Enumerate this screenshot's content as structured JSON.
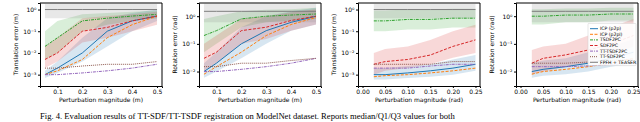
{
  "chart_data": [
    {
      "type": "line",
      "log": "y",
      "x_label": "Perturbation magnitude (m)",
      "y_label": "Translation error (m)",
      "xlim": [
        0.03,
        0.52
      ],
      "xticks": [
        0.1,
        0.2,
        0.3,
        0.4,
        0.5
      ],
      "ylim": [
        0.0003,
        2
      ],
      "yticks": [
        {
          "value": 0.001,
          "label": "10⁻³"
        },
        {
          "value": 0.01,
          "label": "10⁻²"
        },
        {
          "value": 0.1,
          "label": "10⁻¹"
        },
        {
          "value": 1,
          "label": "10⁰"
        }
      ],
      "x": [
        0.05,
        0.1,
        0.2,
        0.3,
        0.4,
        0.5
      ],
      "series": [
        {
          "name": "ICP (p2p)",
          "color": "#1f77b4",
          "line_style": "solid",
          "values": [
            0.001,
            0.002,
            0.01,
            0.1,
            0.3,
            0.5
          ],
          "q1": [
            0.0007,
            0.0012,
            0.004,
            0.02,
            0.1,
            0.3
          ],
          "q3": [
            0.0015,
            0.004,
            0.05,
            0.4,
            0.7,
            1
          ]
        },
        {
          "name": "ICP (p2pl)",
          "color": "#ff7f0e",
          "line_style": "dashed",
          "values": [
            0.001,
            0.0015,
            0.005,
            0.05,
            0.2,
            0.5
          ]
        },
        {
          "name": "TSDF2PC",
          "color": "#2ca02c",
          "line_style": "dashdot",
          "values": [
            0.02,
            0.05,
            0.3,
            0.4,
            0.5,
            0.6
          ],
          "q1": [
            0.005,
            0.01,
            0.1,
            0.2,
            0.3,
            0.4
          ],
          "q3": [
            0.1,
            0.3,
            0.6,
            0.7,
            0.8,
            0.9
          ]
        },
        {
          "name": "SDF2PC",
          "color": "#d62728",
          "line_style": "dashed",
          "values": [
            0.005,
            0.01,
            0.1,
            0.15,
            0.3,
            0.5
          ],
          "q1": [
            0.002,
            0.004,
            0.03,
            0.05,
            0.1,
            0.2
          ],
          "q3": [
            0.02,
            0.05,
            0.4,
            0.5,
            0.6,
            0.8
          ]
        },
        {
          "name": "TT-TSDF2PC",
          "color": "#9467bd",
          "line_style": "dashdot",
          "values": [
            0.001,
            0.001,
            0.0012,
            0.0015,
            0.002,
            0.003
          ]
        },
        {
          "name": "TT-SDF2PC",
          "color": "#8c564b",
          "line_style": "dotted",
          "values": [
            0.002,
            0.002,
            0.0025,
            0.003,
            0.003,
            0.004
          ]
        },
        {
          "name": "FPFH + TEASER",
          "color": "#7f7f7f",
          "line_style": "solid",
          "values": [
            1,
            1,
            1,
            1,
            1,
            1
          ],
          "q1": [
            0.4,
            0.4,
            0.4,
            0.4,
            0.4,
            0.4
          ],
          "q3": [
            1.8,
            1.8,
            1.8,
            1.8,
            1.8,
            1.8
          ]
        }
      ]
    },
    {
      "type": "line",
      "log": "y",
      "x_label": "Perturbation magnitude (m)",
      "y_label": "Rotation error (rad)",
      "xlim": [
        0.03,
        0.52
      ],
      "xticks": [
        0.1,
        0.2,
        0.3,
        0.4,
        0.5
      ],
      "ylim": [
        0.003,
        3
      ],
      "yticks": [
        {
          "value": 0.01,
          "label": "10⁻²"
        },
        {
          "value": 0.1,
          "label": "10⁻¹"
        },
        {
          "value": 1,
          "label": "10⁰"
        }
      ],
      "x": [
        0.05,
        0.1,
        0.2,
        0.3,
        0.4,
        0.5
      ],
      "series": [
        {
          "name": "ICP (p2p)",
          "color": "#1f77b4",
          "line_style": "solid",
          "values": [
            0.01,
            0.02,
            0.1,
            0.3,
            0.6,
            1
          ],
          "q1": [
            0.006,
            0.01,
            0.03,
            0.1,
            0.3,
            0.5
          ],
          "q3": [
            0.02,
            0.05,
            0.4,
            1,
            1.5,
            2
          ]
        },
        {
          "name": "ICP (p2pl)",
          "color": "#ff7f0e",
          "line_style": "dashed",
          "values": [
            0.008,
            0.015,
            0.05,
            0.2,
            0.5,
            0.9
          ]
        },
        {
          "name": "TSDF2PC",
          "color": "#2ca02c",
          "line_style": "dashdot",
          "values": [
            0.2,
            0.3,
            0.8,
            1,
            1.1,
            1.2
          ],
          "q1": [
            0.05,
            0.1,
            0.4,
            0.6,
            0.7,
            0.8
          ],
          "q3": [
            0.8,
            1,
            1.5,
            1.7,
            1.8,
            2
          ]
        },
        {
          "name": "SDF2PC",
          "color": "#d62728",
          "line_style": "dashed",
          "values": [
            0.03,
            0.05,
            0.3,
            0.4,
            0.7,
            1
          ],
          "q1": [
            0.01,
            0.02,
            0.1,
            0.15,
            0.3,
            0.5
          ],
          "q3": [
            0.1,
            0.2,
            0.8,
            1,
            1.4,
            1.8
          ]
        },
        {
          "name": "TT-TSDF2PC",
          "color": "#9467bd",
          "line_style": "dashdot",
          "values": [
            0.01,
            0.01,
            0.012,
            0.015,
            0.02,
            0.03
          ]
        },
        {
          "name": "TT-SDF2PC",
          "color": "#8c564b",
          "line_style": "dotted",
          "values": [
            0.015,
            0.015,
            0.02,
            0.02,
            0.025,
            0.03
          ]
        },
        {
          "name": "FPFH + TEASER",
          "color": "#7f7f7f",
          "line_style": "solid",
          "values": [
            1.5,
            1.5,
            1.5,
            1.5,
            1.5,
            1.5
          ],
          "q1": [
            0.6,
            0.6,
            0.6,
            0.6,
            0.6,
            0.6
          ],
          "q3": [
            2.8,
            2.8,
            2.8,
            2.8,
            2.8,
            2.8
          ]
        }
      ]
    },
    {
      "type": "line",
      "log": "y",
      "x_label": "Perturbation magnitude (rad)",
      "y_label": "Translation error (m)",
      "xlim": [
        -0.01,
        0.26
      ],
      "xticks": [
        {
          "value": 0,
          "label": "0.00"
        },
        0.05,
        {
          "value": 0.1,
          "label": "0.10"
        },
        0.15,
        {
          "value": 0.2,
          "label": "0.20"
        },
        0.25
      ],
      "ylim": [
        0.0003,
        2
      ],
      "yticks": [
        {
          "value": 0.001,
          "label": "10⁻³"
        },
        {
          "value": 0.01,
          "label": "10⁻²"
        },
        {
          "value": 0.1,
          "label": "10⁻¹"
        },
        {
          "value": 1,
          "label": "10⁰"
        }
      ],
      "x": [
        0.025,
        0.05,
        0.1,
        0.15,
        0.2,
        0.25
      ],
      "series": [
        {
          "name": "ICP (p2p)",
          "color": "#1f77b4",
          "line_style": "solid",
          "values": [
            0.001,
            0.001,
            0.0012,
            0.0015,
            0.002,
            0.003
          ],
          "q1": [
            0.0006,
            0.0006,
            0.0007,
            0.0008,
            0.001,
            0.0015
          ],
          "q3": [
            0.002,
            0.002,
            0.0025,
            0.003,
            0.005,
            0.008
          ]
        },
        {
          "name": "ICP (p2pl)",
          "color": "#ff7f0e",
          "line_style": "dashed",
          "values": [
            0.0008,
            0.0009,
            0.001,
            0.0012,
            0.0015,
            0.002
          ]
        },
        {
          "name": "TSDF2PC",
          "color": "#2ca02c",
          "line_style": "dashdot",
          "values": [
            0.3,
            0.3,
            0.35,
            0.35,
            0.4,
            0.4
          ],
          "q1": [
            0.1,
            0.1,
            0.12,
            0.12,
            0.15,
            0.15
          ],
          "q3": [
            0.9,
            0.9,
            1,
            1,
            1.1,
            1.1
          ]
        },
        {
          "name": "SDF2PC",
          "color": "#d62728",
          "line_style": "dashed",
          "values": [
            0.003,
            0.004,
            0.005,
            0.008,
            0.02,
            0.04
          ],
          "q1": [
            0.001,
            0.0015,
            0.002,
            0.003,
            0.006,
            0.01
          ],
          "q3": [
            0.01,
            0.015,
            0.02,
            0.04,
            0.1,
            0.2
          ]
        },
        {
          "name": "TT-TSDF2PC",
          "color": "#9467bd",
          "line_style": "dashdot",
          "values": [
            0.002,
            0.002,
            0.002,
            0.0025,
            0.003,
            0.003
          ]
        },
        {
          "name": "TT-SDF2PC",
          "color": "#8c564b",
          "line_style": "dotted",
          "values": [
            0.003,
            0.003,
            0.003,
            0.003,
            0.004,
            0.004
          ]
        },
        {
          "name": "FPFH + TEASER",
          "color": "#7f7f7f",
          "line_style": "solid",
          "values": [
            1,
            1,
            1,
            1,
            1,
            1
          ],
          "q1": [
            0.4,
            0.4,
            0.4,
            0.4,
            0.4,
            0.4
          ],
          "q3": [
            1.8,
            1.8,
            1.8,
            1.8,
            1.8,
            1.8
          ]
        }
      ]
    },
    {
      "type": "line",
      "log": "y",
      "legend": "center right",
      "x_label": "Perturbation magnitude (rad)",
      "y_label": "Rotation error (rad)",
      "xlim": [
        -0.01,
        0.26
      ],
      "xticks": [
        {
          "value": 0,
          "label": "0.00"
        },
        0.05,
        {
          "value": 0.1,
          "label": "0.10"
        },
        0.15,
        {
          "value": 0.2,
          "label": "0.20"
        },
        0.25
      ],
      "ylim": [
        0.003,
        3
      ],
      "yticks": [
        {
          "value": 0.01,
          "label": "10⁻²"
        },
        {
          "value": 0.1,
          "label": "10⁻¹"
        },
        {
          "value": 1,
          "label": "10⁰"
        }
      ],
      "x": [
        0.025,
        0.05,
        0.1,
        0.15,
        0.2,
        0.25
      ],
      "series": [
        {
          "name": "ICP (p2p)",
          "color": "#1f77b4",
          "line_style": "solid",
          "values": [
            0.01,
            0.012,
            0.015,
            0.02,
            0.03,
            0.05
          ],
          "q1": [
            0.006,
            0.007,
            0.008,
            0.01,
            0.015,
            0.02
          ],
          "q3": [
            0.02,
            0.025,
            0.03,
            0.05,
            0.08,
            0.15
          ]
        },
        {
          "name": "ICP (p2pl)",
          "color": "#ff7f0e",
          "line_style": "dashed",
          "values": [
            0.008,
            0.01,
            0.012,
            0.015,
            0.02,
            0.03
          ]
        },
        {
          "name": "TSDF2PC",
          "color": "#2ca02c",
          "line_style": "dashdot",
          "values": [
            1,
            1,
            1.1,
            1.1,
            1.2,
            1.2
          ],
          "q1": [
            0.5,
            0.5,
            0.6,
            0.6,
            0.7,
            0.7
          ],
          "q3": [
            1.8,
            1.8,
            1.9,
            1.9,
            2,
            2
          ]
        },
        {
          "name": "SDF2PC",
          "color": "#d62728",
          "line_style": "dashed",
          "values": [
            0.02,
            0.03,
            0.04,
            0.06,
            0.1,
            0.2
          ],
          "q1": [
            0.008,
            0.01,
            0.015,
            0.02,
            0.04,
            0.08
          ],
          "q3": [
            0.06,
            0.08,
            0.1,
            0.2,
            0.4,
            0.8
          ]
        },
        {
          "name": "TT-TSDF2PC",
          "color": "#9467bd",
          "line_style": "dashdot",
          "values": [
            0.015,
            0.015,
            0.015,
            0.016,
            0.018,
            0.02
          ]
        },
        {
          "name": "TT-SDF2PC",
          "color": "#8c564b",
          "line_style": "dotted",
          "values": [
            0.02,
            0.02,
            0.02,
            0.022,
            0.025,
            0.028
          ]
        },
        {
          "name": "FPFH + TEASER",
          "color": "#7f7f7f",
          "line_style": "solid",
          "values": [
            1.5,
            1.5,
            1.5,
            1.5,
            1.5,
            1.5
          ],
          "q1": [
            0.6,
            0.6,
            0.6,
            0.6,
            0.6,
            0.6
          ],
          "q3": [
            2.8,
            2.8,
            2.8,
            2.8,
            2.8,
            2.8
          ]
        }
      ]
    }
  ],
  "caption": "Fig. 4. Evaluation results of TT-SDF/TT-TSDF registration on ModelNet dataset. Reports median/Q1/Q3 values for both"
}
